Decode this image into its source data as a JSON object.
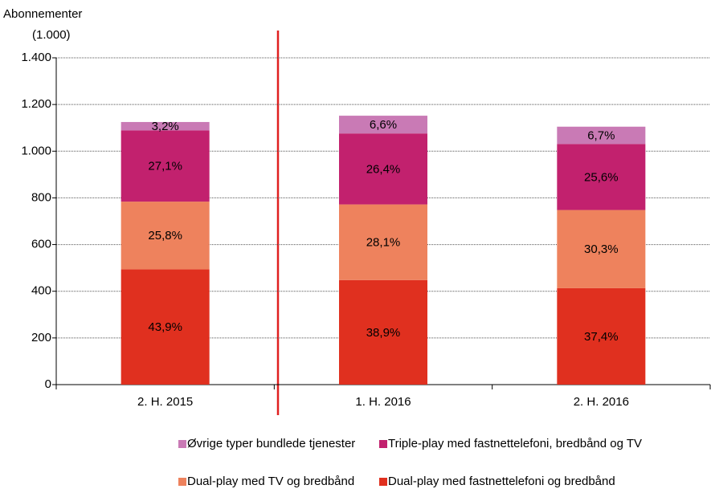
{
  "chart_data": {
    "type": "stacked_bar",
    "y_label": "Abonnementer",
    "y_unit": "(1.000)",
    "categories": [
      "2. H. 2015",
      "1. H. 2016",
      "2. H. 2016"
    ],
    "series": [
      {
        "name": "Dual-play med fastnettelefoni og bredbånd",
        "color": "#e0301f",
        "values": [
          494,
          448,
          413
        ],
        "segment_labels": [
          "43,9%",
          "38,9%",
          "37,4%"
        ]
      },
      {
        "name": "Dual-play med TV og bredbånd",
        "color": "#ee825d",
        "values": [
          290,
          324,
          335
        ],
        "segment_labels": [
          "25,8%",
          "28,1%",
          "30,3%"
        ]
      },
      {
        "name": "Triple-play med fastnettelefoni, bredbånd og TV",
        "color": "#c2216e",
        "values": [
          305,
          304,
          283
        ],
        "segment_labels": [
          "27,1%",
          "26,4%",
          "25,6%"
        ]
      },
      {
        "name": "Øvrige typer bundlede tjenester",
        "color": "#c97ab5",
        "values": [
          36,
          76,
          74
        ],
        "segment_labels": [
          "3,2%",
          "6,6%",
          "6,7%"
        ]
      }
    ],
    "ylim": [
      0,
      1400
    ],
    "yticks": [
      0,
      200,
      400,
      600,
      800,
      {
        "value": 1000,
        "label": "1.000"
      },
      {
        "value": 1200,
        "label": "1.200"
      },
      {
        "value": 1400,
        "label": "1.400"
      }
    ],
    "grid": true
  }
}
